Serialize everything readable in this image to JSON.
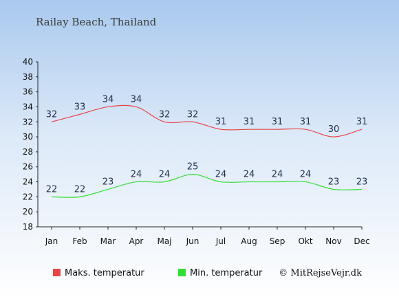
{
  "chart_data": {
    "type": "line",
    "title": "Railay Beach, Thailand",
    "categories": [
      "Jan",
      "Feb",
      "Mar",
      "Apr",
      "Maj",
      "Jun",
      "Jul",
      "Aug",
      "Sep",
      "Okt",
      "Nov",
      "Dec"
    ],
    "series": [
      {
        "name": "Maks. temperatur",
        "color": "#e84545",
        "values": [
          32,
          33,
          34,
          34,
          32,
          32,
          31,
          31,
          31,
          31,
          30,
          31
        ]
      },
      {
        "name": "Min. temperatur",
        "color": "#33dd33",
        "values": [
          22,
          22,
          23,
          24,
          24,
          25,
          24,
          24,
          24,
          24,
          23,
          23
        ]
      }
    ],
    "ylim": [
      18,
      40
    ],
    "yticks": [
      18,
      20,
      22,
      24,
      26,
      28,
      30,
      32,
      34,
      36,
      38,
      40
    ],
    "grid": false,
    "legend_position": "bottom"
  },
  "credit": "© MitRejseVejr.dk"
}
